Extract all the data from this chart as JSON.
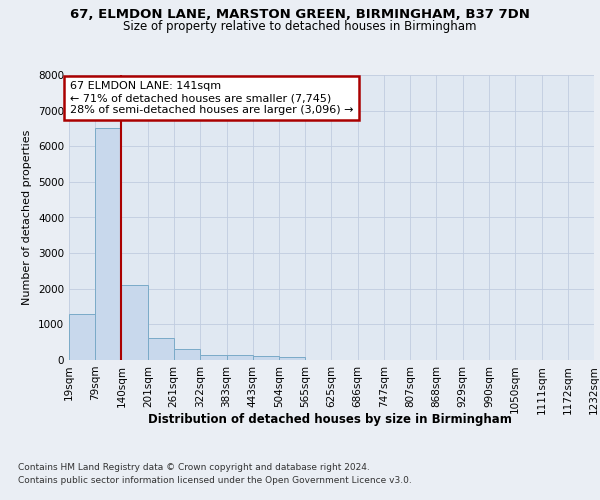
{
  "title": "67, ELMDON LANE, MARSTON GREEN, BIRMINGHAM, B37 7DN",
  "subtitle": "Size of property relative to detached houses in Birmingham",
  "xlabel": "Distribution of detached houses by size in Birmingham",
  "ylabel": "Number of detached properties",
  "footer_line1": "Contains HM Land Registry data © Crown copyright and database right 2024.",
  "footer_line2": "Contains public sector information licensed under the Open Government Licence v3.0.",
  "annotation_line1": "67 ELMDON LANE: 141sqm",
  "annotation_line2": "← 71% of detached houses are smaller (7,745)",
  "annotation_line3": "28% of semi-detached houses are larger (3,096) →",
  "bar_edges": [
    19,
    79,
    140,
    201,
    261,
    322,
    383,
    443,
    504,
    565,
    625,
    686,
    747,
    807,
    868,
    929,
    990,
    1050,
    1111,
    1172,
    1232
  ],
  "bar_heights": [
    1300,
    6500,
    2100,
    630,
    300,
    150,
    130,
    100,
    80,
    0,
    0,
    0,
    0,
    0,
    0,
    0,
    0,
    0,
    0,
    0
  ],
  "bar_color": "#c8d8ec",
  "bar_edge_color": "#7aaac8",
  "vline_color": "#aa0000",
  "vline_x": 140,
  "annotation_edge_color": "#aa0000",
  "ylim": [
    0,
    8000
  ],
  "yticks": [
    0,
    1000,
    2000,
    3000,
    4000,
    5000,
    6000,
    7000,
    8000
  ],
  "grid_color": "#c0cce0",
  "bg_color": "#eaeef4",
  "plot_bg_color": "#e0e8f2"
}
